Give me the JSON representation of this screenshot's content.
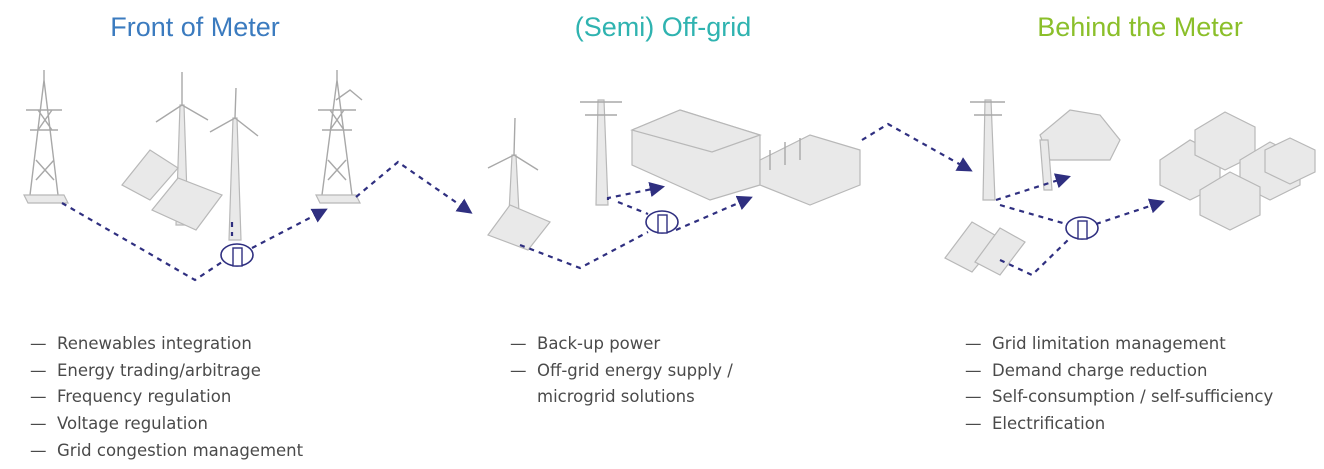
{
  "columns": [
    {
      "title": "Front of Meter",
      "items": [
        "Renewables integration",
        "Energy trading/arbitrage",
        "Frequency regulation",
        "Voltage regulation",
        "Grid congestion management"
      ]
    },
    {
      "title": "(Semi) Off-grid",
      "items": [
        "Back-up power",
        "Off-grid energy supply / microgrid solutions"
      ]
    },
    {
      "title": "Behind the Meter",
      "items": [
        "Grid limitation management",
        "Demand charge reduction",
        "Self-consumption / self-sufficiency",
        "Electrification"
      ]
    }
  ]
}
